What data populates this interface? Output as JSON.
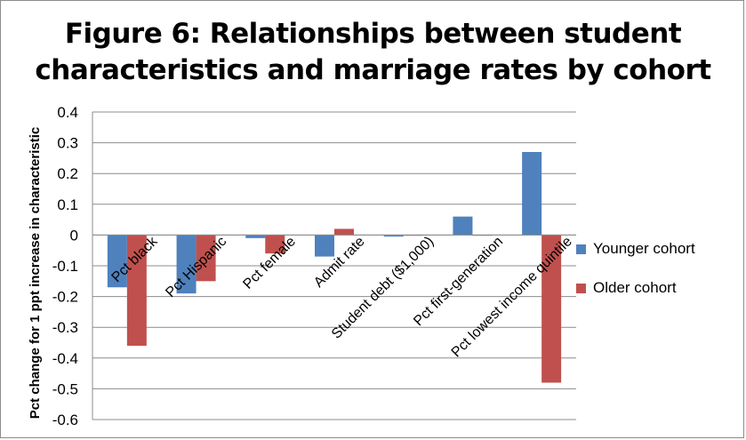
{
  "title_lines": [
    "Figure 6: Relationships between student",
    "characteristics and marriage rates by cohort"
  ],
  "chart_data": {
    "type": "bar",
    "title": "Figure 6: Relationships between student characteristics and marriage rates by cohort",
    "xlabel": "",
    "ylabel": "Pct change for 1 ppt increase in characteristic",
    "ylim": [
      -0.6,
      0.4
    ],
    "yticks": [
      0.4,
      0.3,
      0.2,
      0.1,
      0,
      -0.1,
      -0.2,
      -0.3,
      -0.4,
      -0.5,
      -0.6
    ],
    "ytick_labels": [
      "0.4",
      "0.3",
      "0.2",
      "0.1",
      "0",
      "-0.1",
      "-0.2",
      "-0.3",
      "-0.4",
      "-0.5",
      "-0.6"
    ],
    "grid": true,
    "legend_position": "right",
    "categories": [
      "Pct black",
      "Pct Hispanic",
      "Pct female",
      "Admit rate",
      "Student debt ($1,000)",
      "Pct first-generation",
      "Pct lowest income quintile"
    ],
    "series": [
      {
        "name": "Younger cohort",
        "color": "#4f81bd",
        "values": [
          -0.17,
          -0.19,
          -0.01,
          -0.07,
          -0.005,
          0.06,
          0.27
        ]
      },
      {
        "name": "Older cohort",
        "color": "#c0504d",
        "values": [
          -0.36,
          -0.15,
          -0.06,
          0.02,
          0,
          0,
          -0.48
        ]
      }
    ]
  }
}
